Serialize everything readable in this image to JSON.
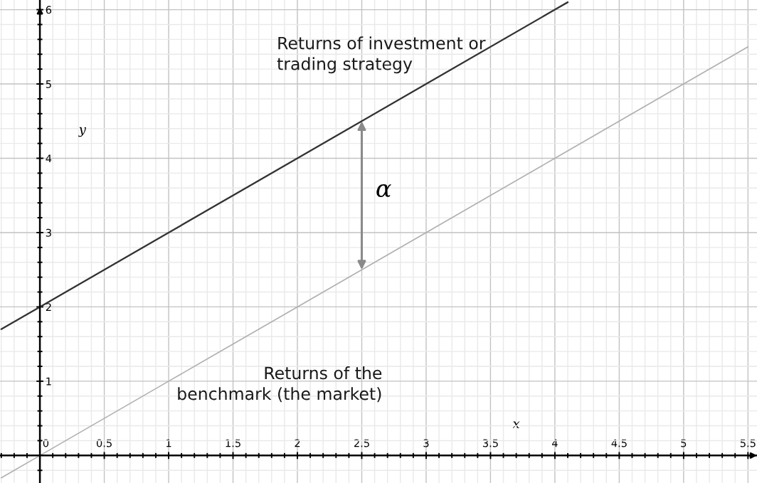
{
  "chart_data": {
    "type": "line",
    "xlabel": "x",
    "ylabel": "y",
    "series": [
      {
        "name": "Returns of investment or\ntrading strategy",
        "color": "#333333",
        "x": [
          -0.3,
          0,
          1,
          2,
          2.5,
          3,
          4,
          4.1
        ],
        "values": [
          1.7,
          2,
          3,
          4,
          4.5,
          5,
          6,
          6.1
        ]
      },
      {
        "name": "Returns of the\nbenchmark (the market)",
        "color": "#b0b0b0",
        "x": [
          -0.3,
          0,
          1,
          2,
          2.5,
          3,
          4,
          5,
          5.5
        ],
        "values": [
          -0.3,
          0,
          1,
          2,
          2.5,
          3,
          4,
          5,
          5.5
        ]
      }
    ],
    "annotations": [
      {
        "text": "α",
        "x": 2.5,
        "y": 4.5
      }
    ],
    "xlim": [
      -0.31,
      5.57
    ],
    "ylim": [
      -0.37,
      6.13
    ],
    "xticks": [
      {
        "value": -0.3,
        "label": null
      },
      {
        "value": -0.2,
        "label": null
      },
      {
        "value": -0.1,
        "label": null
      },
      0,
      {
        "value": 0.1,
        "label": null
      },
      {
        "value": 0.2,
        "label": null
      },
      {
        "value": 0.3,
        "label": null
      },
      {
        "value": 0.4,
        "label": null
      },
      0.5,
      {
        "value": 0.6,
        "label": null
      },
      {
        "value": 0.7,
        "label": null
      },
      {
        "value": 0.8,
        "label": null
      },
      {
        "value": 0.9,
        "label": null
      },
      1,
      {
        "value": 1.1,
        "label": null
      },
      {
        "value": 1.2,
        "label": null
      },
      {
        "value": 1.3,
        "label": null
      },
      {
        "value": 1.4,
        "label": null
      },
      1.5,
      {
        "value": 1.6,
        "label": null
      },
      {
        "value": 1.7,
        "label": null
      },
      {
        "value": 1.8,
        "label": null
      },
      {
        "value": 1.9,
        "label": null
      },
      2,
      {
        "value": 2.1,
        "label": null
      },
      {
        "value": 2.2,
        "label": null
      },
      {
        "value": 2.3,
        "label": null
      },
      {
        "value": 2.4,
        "label": null
      },
      2.5,
      {
        "value": 2.6,
        "label": null
      },
      {
        "value": 2.7,
        "label": null
      },
      {
        "value": 2.8,
        "label": null
      },
      {
        "value": 2.9,
        "label": null
      },
      3,
      {
        "value": 3.1,
        "label": null
      },
      {
        "value": 3.2,
        "label": null
      },
      {
        "value": 3.3,
        "label": null
      },
      {
        "value": 3.4,
        "label": null
      },
      3.5,
      {
        "value": 3.6,
        "label": null
      },
      {
        "value": 3.7,
        "label": null
      },
      {
        "value": 3.8,
        "label": null
      },
      {
        "value": 3.9,
        "label": null
      },
      4,
      {
        "value": 4.1,
        "label": null
      },
      {
        "value": 4.2,
        "label": null
      },
      {
        "value": 4.3,
        "label": null
      },
      {
        "value": 4.4,
        "label": null
      },
      4.5,
      {
        "value": 4.6,
        "label": null
      },
      {
        "value": 4.7,
        "label": null
      },
      {
        "value": 4.8,
        "label": null
      },
      {
        "value": 4.9,
        "label": null
      },
      5,
      {
        "value": 5.1,
        "label": null
      },
      {
        "value": 5.2,
        "label": null
      },
      {
        "value": 5.3,
        "label": null
      },
      {
        "value": 5.4,
        "label": null
      },
      5.5
    ],
    "yticks": [
      {
        "value": -0.2,
        "label": null
      },
      {
        "value": 0.2,
        "label": null
      },
      {
        "value": 0.4,
        "label": null
      },
      {
        "value": 0.6,
        "label": null
      },
      {
        "value": 0.8,
        "label": null
      },
      1,
      {
        "value": 1.2,
        "label": null
      },
      {
        "value": 1.4,
        "label": null
      },
      {
        "value": 1.6,
        "label": null
      },
      {
        "value": 1.8,
        "label": null
      },
      2,
      {
        "value": 2.2,
        "label": null
      },
      {
        "value": 2.4,
        "label": null
      },
      {
        "value": 2.6,
        "label": null
      },
      {
        "value": 2.8,
        "label": null
      },
      3,
      {
        "value": 3.2,
        "label": null
      },
      {
        "value": 3.4,
        "label": null
      },
      {
        "value": 3.6,
        "label": null
      },
      {
        "value": 3.8,
        "label": null
      },
      4,
      {
        "value": 4.2,
        "label": null
      },
      {
        "value": 4.4,
        "label": null
      },
      {
        "value": 4.6,
        "label": null
      },
      {
        "value": 4.8,
        "label": null
      },
      5,
      {
        "value": 5.2,
        "label": null
      },
      {
        "value": 5.4,
        "label": null
      },
      {
        "value": 5.6,
        "label": null
      },
      {
        "value": 5.8,
        "label": null
      },
      6
    ],
    "grid": true
  }
}
